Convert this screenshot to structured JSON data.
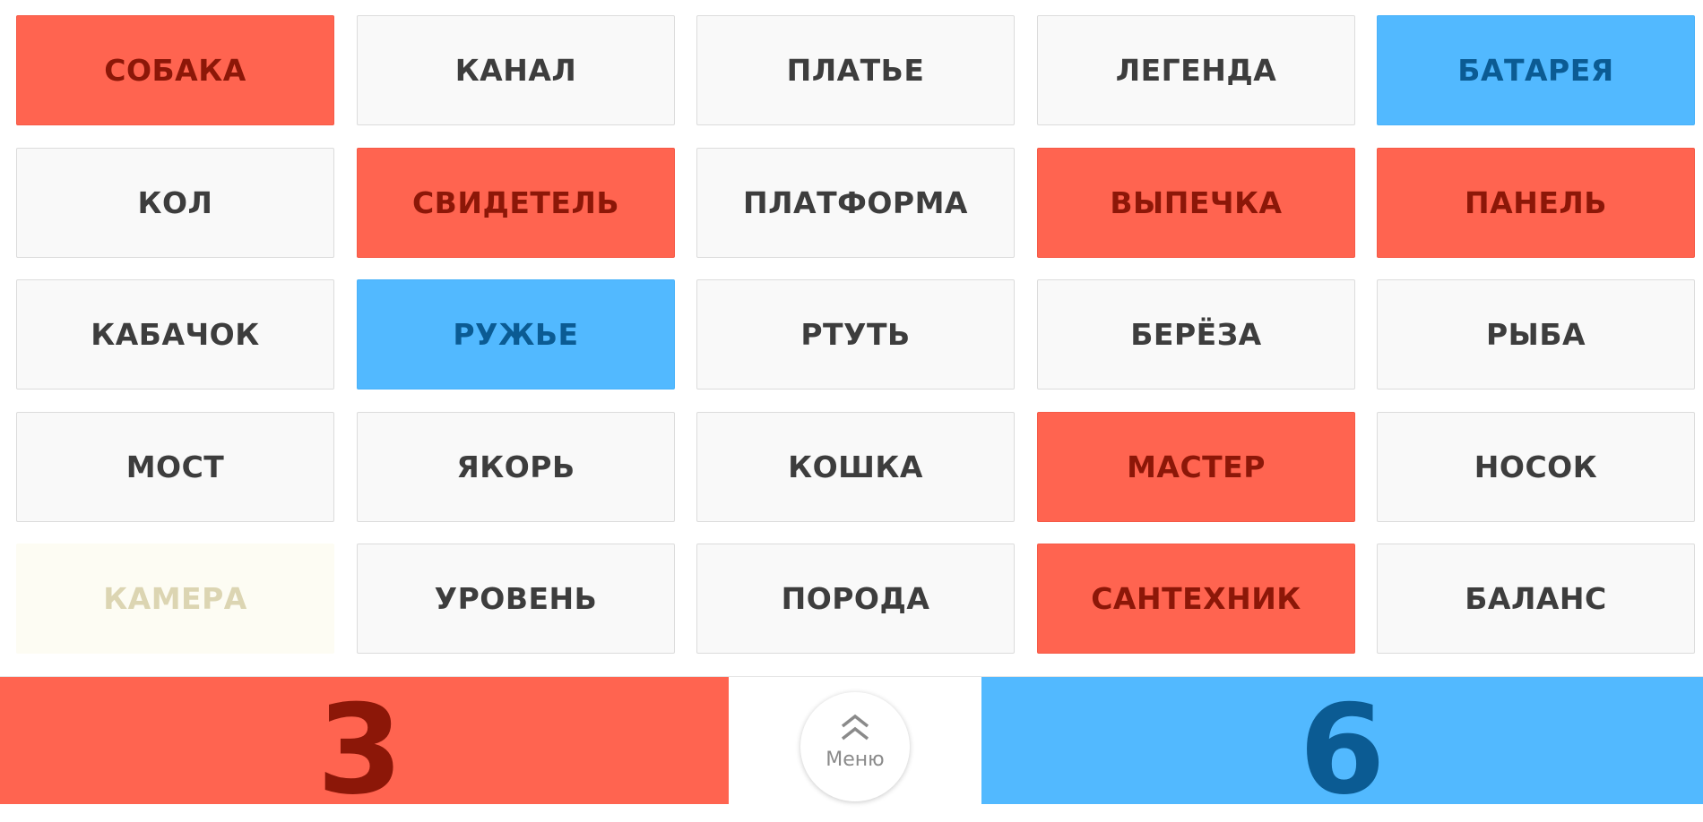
{
  "board": {
    "cards": [
      {
        "word": "СОБАКА",
        "state": "red"
      },
      {
        "word": "КАНАЛ",
        "state": "neutral"
      },
      {
        "word": "ПЛАТЬЕ",
        "state": "neutral"
      },
      {
        "word": "ЛЕГЕНДА",
        "state": "neutral"
      },
      {
        "word": "БАТАРЕЯ",
        "state": "blue"
      },
      {
        "word": "КОЛ",
        "state": "neutral"
      },
      {
        "word": "СВИДЕТЕЛЬ",
        "state": "red"
      },
      {
        "word": "ПЛАТФОРМА",
        "state": "neutral"
      },
      {
        "word": "ВЫПЕЧКА",
        "state": "red"
      },
      {
        "word": "ПАНЕЛЬ",
        "state": "red"
      },
      {
        "word": "КАБАЧОК",
        "state": "neutral"
      },
      {
        "word": "РУЖЬЕ",
        "state": "blue"
      },
      {
        "word": "РТУТЬ",
        "state": "neutral"
      },
      {
        "word": "БЕРЁЗА",
        "state": "neutral"
      },
      {
        "word": "РЫБА",
        "state": "neutral"
      },
      {
        "word": "МОСТ",
        "state": "neutral"
      },
      {
        "word": "ЯКОРЬ",
        "state": "neutral"
      },
      {
        "word": "КОШКА",
        "state": "neutral"
      },
      {
        "word": "МАСТЕР",
        "state": "red"
      },
      {
        "word": "НОСОК",
        "state": "neutral"
      },
      {
        "word": "КАМЕРА",
        "state": "beige"
      },
      {
        "word": "УРОВЕНЬ",
        "state": "neutral"
      },
      {
        "word": "ПОРОДА",
        "state": "neutral"
      },
      {
        "word": "САНТЕХНИК",
        "state": "red"
      },
      {
        "word": "БАЛАНС",
        "state": "neutral"
      }
    ]
  },
  "scores": {
    "red": "3",
    "blue": "6"
  },
  "menu": {
    "label": "Меню",
    "icon": "double-chevron-up-icon"
  },
  "colors": {
    "red_card": "#ff6450",
    "red_text": "#8c1708",
    "blue_card": "#52b9ff",
    "blue_text": "#0b5b93",
    "neutral_card": "#f9f9f9",
    "neutral_text": "#3d3d3d",
    "beige_card": "#fdfcf3",
    "beige_text": "#dcd5b2"
  }
}
